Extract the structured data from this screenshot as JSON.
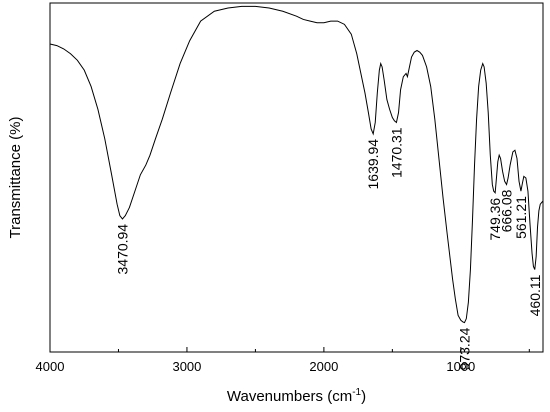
{
  "chart_data": {
    "type": "line",
    "title": "",
    "xlabel": "Wavenumbers (cm",
    "xlabel_sup": "-1",
    "xlabel_tail": ")",
    "ylabel": "Transmittance (%)",
    "x_reversed": true,
    "xlim": [
      4000,
      400
    ],
    "ylim": [
      0,
      100
    ],
    "xticks": [
      {
        "value": 4000,
        "label": "4000"
      },
      {
        "value": 3000,
        "label": "3000"
      },
      {
        "value": 2000,
        "label": "2000"
      },
      {
        "value": 1000,
        "label": "1000"
      }
    ],
    "yticks_labeled": false,
    "grid": false,
    "legend": false,
    "series": [
      {
        "color": "#000000",
        "points": [
          [
            4000,
            89
          ],
          [
            3950,
            88.5
          ],
          [
            3900,
            87.5
          ],
          [
            3850,
            86
          ],
          [
            3800,
            84
          ],
          [
            3750,
            81
          ],
          [
            3700,
            76
          ],
          [
            3650,
            69
          ],
          [
            3600,
            60
          ],
          [
            3550,
            49
          ],
          [
            3510,
            40
          ],
          [
            3490,
            36.5
          ],
          [
            3470.94,
            35.5
          ],
          [
            3450,
            36.5
          ],
          [
            3420,
            39
          ],
          [
            3380,
            44
          ],
          [
            3340,
            49
          ],
          [
            3300,
            52
          ],
          [
            3270,
            55
          ],
          [
            3230,
            60
          ],
          [
            3180,
            66
          ],
          [
            3120,
            74
          ],
          [
            3050,
            83
          ],
          [
            2980,
            90
          ],
          [
            2900,
            96
          ],
          [
            2800,
            99
          ],
          [
            2700,
            100
          ],
          [
            2600,
            100.5
          ],
          [
            2500,
            100.5
          ],
          [
            2400,
            100
          ],
          [
            2300,
            99
          ],
          [
            2200,
            97.5
          ],
          [
            2150,
            96.5
          ],
          [
            2100,
            96
          ],
          [
            2050,
            95.5
          ],
          [
            2000,
            95.5
          ],
          [
            1950,
            96
          ],
          [
            1900,
            96
          ],
          [
            1850,
            95
          ],
          [
            1800,
            92
          ],
          [
            1760,
            86
          ],
          [
            1730,
            80
          ],
          [
            1700,
            74
          ],
          [
            1675,
            68
          ],
          [
            1655,
            63
          ],
          [
            1639.94,
            61.5
          ],
          [
            1625,
            65
          ],
          [
            1610,
            74
          ],
          [
            1595,
            81
          ],
          [
            1585,
            83
          ],
          [
            1575,
            82
          ],
          [
            1560,
            78
          ],
          [
            1540,
            72
          ],
          [
            1520,
            69
          ],
          [
            1500,
            66.5
          ],
          [
            1485,
            65.5
          ],
          [
            1470.31,
            65
          ],
          [
            1455,
            68
          ],
          [
            1440,
            75
          ],
          [
            1420,
            79
          ],
          [
            1400,
            80
          ],
          [
            1390,
            79
          ],
          [
            1380,
            81
          ],
          [
            1360,
            85
          ],
          [
            1340,
            86.5
          ],
          [
            1320,
            87
          ],
          [
            1300,
            86.5
          ],
          [
            1280,
            85.5
          ],
          [
            1250,
            82
          ],
          [
            1220,
            76
          ],
          [
            1190,
            66
          ],
          [
            1160,
            54
          ],
          [
            1130,
            42
          ],
          [
            1100,
            31
          ],
          [
            1080,
            24
          ],
          [
            1060,
            17
          ],
          [
            1040,
            11
          ],
          [
            1020,
            6
          ],
          [
            1000,
            4.5
          ],
          [
            985,
            4
          ],
          [
            973.24,
            3.8
          ],
          [
            960,
            5
          ],
          [
            945,
            10
          ],
          [
            930,
            20
          ],
          [
            915,
            35
          ],
          [
            900,
            52
          ],
          [
            885,
            66
          ],
          [
            870,
            76
          ],
          [
            855,
            81
          ],
          [
            840,
            83
          ],
          [
            830,
            82
          ],
          [
            815,
            77
          ],
          [
            800,
            68
          ],
          [
            785,
            55
          ],
          [
            770,
            46
          ],
          [
            760,
            44
          ],
          [
            749.36,
            43.5
          ],
          [
            740,
            48
          ],
          [
            730,
            53
          ],
          [
            720,
            55
          ],
          [
            710,
            54
          ],
          [
            695,
            50
          ],
          [
            680,
            47
          ],
          [
            666.08,
            46
          ],
          [
            655,
            48
          ],
          [
            640,
            52
          ],
          [
            620,
            56
          ],
          [
            605,
            56.5
          ],
          [
            590,
            54
          ],
          [
            575,
            47
          ],
          [
            561.21,
            44
          ],
          [
            550,
            46.5
          ],
          [
            540,
            48.5
          ],
          [
            525,
            48
          ],
          [
            510,
            44
          ],
          [
            495,
            34
          ],
          [
            480,
            25
          ],
          [
            470,
            21
          ],
          [
            460.11,
            20
          ],
          [
            450,
            24
          ],
          [
            440,
            33
          ],
          [
            430,
            38
          ],
          [
            420,
            40
          ],
          [
            410,
            40.5
          ],
          [
            400,
            41
          ]
        ]
      }
    ],
    "annotations": [
      {
        "text": "3470.94",
        "x": 3470.94,
        "y": 35.5
      },
      {
        "text": "1639.94",
        "x": 1639.94,
        "y": 61.5
      },
      {
        "text": "1470.31",
        "x": 1470.31,
        "y": 65
      },
      {
        "text": "973.24",
        "x": 973.24,
        "y": 3.8
      },
      {
        "text": "749.36",
        "x": 749.36,
        "y": 43.5
      },
      {
        "text": "666.08",
        "x": 666.08,
        "y": 46
      },
      {
        "text": "561.21",
        "x": 561.21,
        "y": 44
      },
      {
        "text": "460.11",
        "x": 460.11,
        "y": 20
      }
    ]
  }
}
